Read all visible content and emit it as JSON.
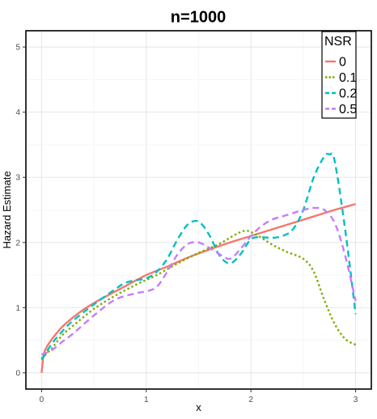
{
  "chart_data": {
    "type": "line",
    "title": "n=1000",
    "xlabel": "x",
    "ylabel": "Hazard Estimate",
    "xlim": [
      0,
      3
    ],
    "ylim": [
      0,
      5
    ],
    "xticks": [
      0,
      1,
      2,
      3
    ],
    "yticks": [
      0,
      1,
      2,
      3,
      4,
      5
    ],
    "grid": true,
    "legend": {
      "title": "NSR",
      "position": "top-right"
    },
    "series": [
      {
        "name": "0",
        "color": "#F8766D",
        "dash": "solid",
        "x": [
          0,
          0.02,
          0.05,
          0.1,
          0.15,
          0.2,
          0.3,
          0.4,
          0.5,
          0.6,
          0.8,
          1.0,
          1.2,
          1.4,
          1.6,
          1.8,
          2.0,
          2.2,
          2.4,
          2.6,
          2.8,
          3.0
        ],
        "y": [
          0.0,
          0.28,
          0.4,
          0.52,
          0.62,
          0.71,
          0.85,
          0.97,
          1.07,
          1.16,
          1.33,
          1.5,
          1.63,
          1.77,
          1.89,
          2.0,
          2.1,
          2.2,
          2.3,
          2.4,
          2.5,
          2.59
        ]
      },
      {
        "name": "0.1",
        "color": "#7CAE00",
        "dash": "dotted",
        "x": [
          0,
          0.1,
          0.2,
          0.3,
          0.5,
          0.7,
          0.9,
          1.1,
          1.3,
          1.5,
          1.7,
          1.85,
          1.95,
          2.05,
          2.2,
          2.35,
          2.5,
          2.6,
          2.7,
          2.8,
          2.9,
          3.0
        ],
        "y": [
          0.22,
          0.38,
          0.58,
          0.72,
          0.98,
          1.18,
          1.35,
          1.5,
          1.68,
          1.84,
          1.98,
          2.12,
          2.18,
          2.12,
          1.97,
          1.85,
          1.75,
          1.55,
          1.12,
          0.75,
          0.52,
          0.43
        ]
      },
      {
        "name": "0.2",
        "color": "#00BFC4",
        "dash": "dashed",
        "x": [
          0,
          0.1,
          0.2,
          0.3,
          0.5,
          0.7,
          0.8,
          0.9,
          1.0,
          1.1,
          1.2,
          1.3,
          1.4,
          1.5,
          1.6,
          1.7,
          1.8,
          1.9,
          2.0,
          2.1,
          2.2,
          2.3,
          2.4,
          2.5,
          2.6,
          2.7,
          2.75,
          2.8,
          2.9,
          3.0
        ],
        "y": [
          0.2,
          0.45,
          0.64,
          0.8,
          1.05,
          1.28,
          1.38,
          1.42,
          1.45,
          1.55,
          1.75,
          2.05,
          2.28,
          2.32,
          2.12,
          1.8,
          1.68,
          1.82,
          2.05,
          2.08,
          2.07,
          2.1,
          2.2,
          2.5,
          3.0,
          3.32,
          3.35,
          3.25,
          2.2,
          0.9
        ]
      },
      {
        "name": "0.5",
        "color": "#C77CFF",
        "dash": "dashed",
        "x": [
          0,
          0.1,
          0.2,
          0.3,
          0.5,
          0.7,
          0.9,
          1.0,
          1.1,
          1.2,
          1.3,
          1.4,
          1.5,
          1.6,
          1.7,
          1.8,
          1.9,
          2.0,
          2.1,
          2.2,
          2.3,
          2.4,
          2.5,
          2.6,
          2.7,
          2.8,
          2.9,
          3.0
        ],
        "y": [
          0.28,
          0.35,
          0.48,
          0.6,
          0.88,
          1.12,
          1.22,
          1.25,
          1.32,
          1.55,
          1.82,
          1.98,
          2.0,
          1.92,
          1.82,
          1.75,
          1.9,
          2.1,
          2.25,
          2.35,
          2.4,
          2.45,
          2.5,
          2.53,
          2.5,
          2.3,
          1.8,
          1.1
        ]
      }
    ]
  }
}
